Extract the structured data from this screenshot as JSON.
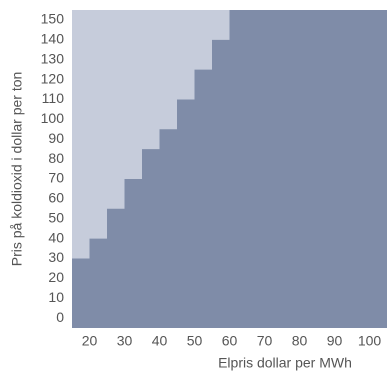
{
  "chart_data": {
    "type": "area",
    "step": "post",
    "x_label": "Elpris dollar per MWh",
    "y_label": "Pris på koldioxid i dollar per ton",
    "x": [
      15,
      20,
      25,
      30,
      35,
      40,
      45,
      50,
      55,
      60,
      105
    ],
    "values": [
      30,
      40,
      55,
      70,
      85,
      95,
      110,
      125,
      140,
      155,
      155
    ],
    "color": "#7f8ca8",
    "background_color": "#c6ccdb",
    "xlim": [
      15,
      105
    ],
    "ylim": [
      -5,
      155
    ],
    "xticks": [
      20,
      30,
      40,
      50,
      60,
      70,
      80,
      90,
      100
    ],
    "yticks": [
      0,
      10,
      20,
      30,
      40,
      50,
      60,
      70,
      80,
      90,
      100,
      110,
      120,
      130,
      140,
      150
    ]
  }
}
